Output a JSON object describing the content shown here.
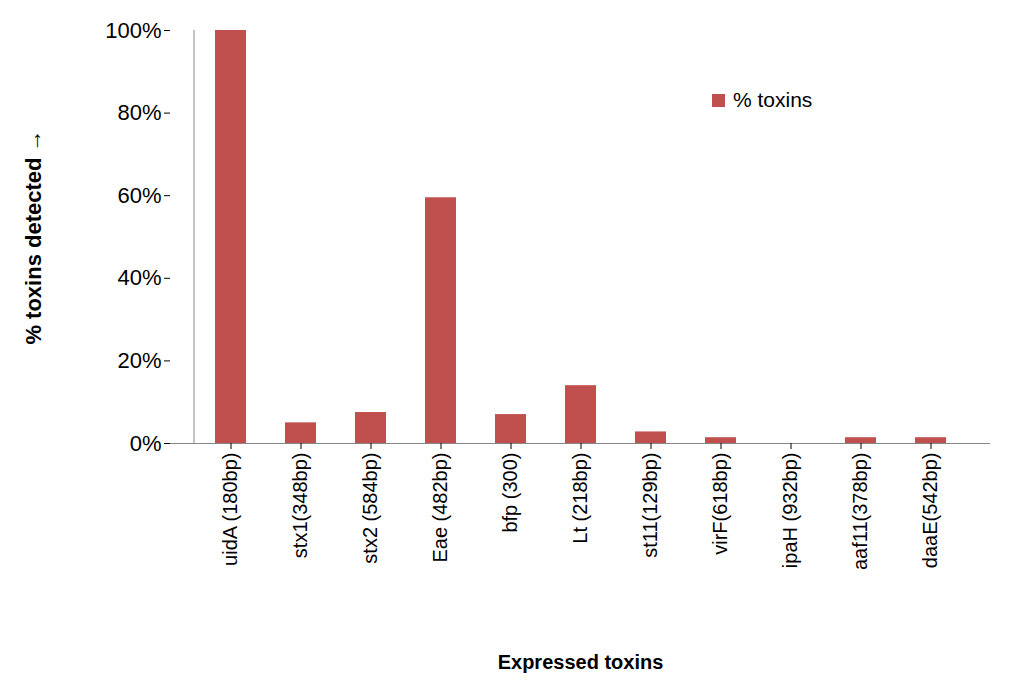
{
  "chart_data": {
    "type": "bar",
    "categories": [
      "uidA (180bp)",
      "stx1(348bp)",
      "stx2 (584bp)",
      "Eae (482bp)",
      "bfp (300)",
      "Lt (218bp)",
      "st11(129bp)",
      "virF(618bp)",
      "ipaH (932bp)",
      "aaf11(378bp)",
      "daaE(542bp)"
    ],
    "series": [
      {
        "name": "% toxins",
        "color": "#c0504d",
        "values": [
          100,
          5,
          7.5,
          59.5,
          7,
          14,
          2.8,
          1.4,
          0,
          1.4,
          1.4
        ]
      }
    ],
    "x_label": "Expressed toxins",
    "y_label": "% toxins detected",
    "ylim": [
      0,
      100
    ],
    "yticks": [
      {
        "value": 0,
        "label": "0%"
      },
      {
        "value": 20,
        "label": "20%"
      },
      {
        "value": 40,
        "label": "40%"
      },
      {
        "value": 60,
        "label": "60%"
      },
      {
        "value": 80,
        "label": "80%"
      },
      {
        "value": 100,
        "label": "100%"
      }
    ],
    "legend": "top-right",
    "grid": false
  }
}
